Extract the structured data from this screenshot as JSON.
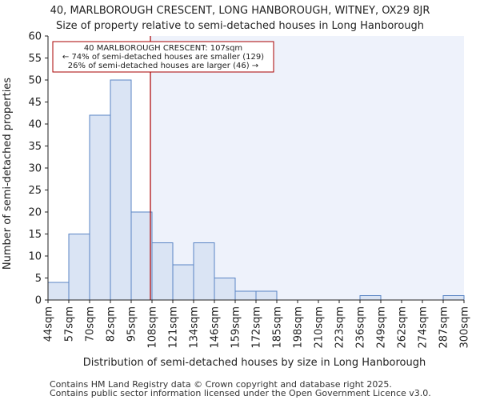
{
  "chart_data": {
    "type": "bar",
    "title": "40, MARLBOROUGH CRESCENT, LONG HANBOROUGH, WITNEY, OX29 8JR",
    "subtitle": "Size of property relative to semi-detached houses in Long Hanborough",
    "xlabel": "Distribution of semi-detached houses by size in Long Hanborough",
    "ylabel": "Number of semi-detached properties",
    "ylim": [
      0,
      60
    ],
    "yticks": [
      0,
      5,
      10,
      15,
      20,
      25,
      30,
      35,
      40,
      45,
      50,
      55,
      60
    ],
    "bin_edges": [
      44,
      57,
      70,
      82,
      95,
      108,
      121,
      134,
      146,
      159,
      172,
      185,
      198,
      210,
      223,
      236,
      249,
      262,
      274,
      287,
      300
    ],
    "xtick_labels": [
      "44sqm",
      "57sqm",
      "70sqm",
      "82sqm",
      "95sqm",
      "108sqm",
      "121sqm",
      "134sqm",
      "146sqm",
      "159sqm",
      "172sqm",
      "185sqm",
      "198sqm",
      "210sqm",
      "223sqm",
      "236sqm",
      "249sqm",
      "262sqm",
      "274sqm",
      "287sqm",
      "300sqm"
    ],
    "values": [
      4,
      15,
      42,
      50,
      20,
      13,
      8,
      13,
      5,
      2,
      2,
      0,
      0,
      0,
      0,
      1,
      0,
      0,
      0,
      1
    ],
    "property_marker": {
      "value": 107,
      "label_lines": [
        "40 MARLBOROUGH CRESCENT: 107sqm",
        "← 74% of semi-detached houses are smaller (129)",
        "26% of semi-detached houses are larger (46) →"
      ]
    },
    "colors": {
      "bar_fill": "#dae4f4",
      "bar_edge": "#5a85c4",
      "marker_line": "#aa0000",
      "annotation_border": "#aa0000",
      "highlight_bg": "#eef2fb",
      "axis": "#222222"
    }
  },
  "footer": {
    "line1": "Contains HM Land Registry data © Crown copyright and database right 2025.",
    "line2": "Contains public sector information licensed under the Open Government Licence v3.0."
  }
}
